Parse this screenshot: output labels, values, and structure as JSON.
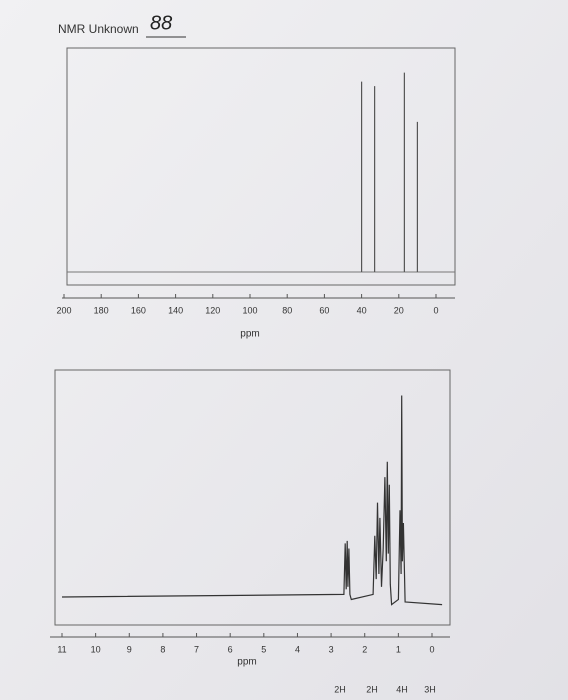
{
  "header": {
    "title": "NMR Unknown",
    "sample_number": "88"
  },
  "chart_data": [
    {
      "type": "stick",
      "x": [
        40,
        33,
        17,
        10
      ],
      "values": [
        85,
        83,
        89,
        67
      ],
      "xlim": [
        200,
        0
      ],
      "xticks": [
        200,
        180,
        160,
        140,
        120,
        100,
        80,
        60,
        40,
        20,
        0
      ],
      "ylim": [
        0,
        100
      ],
      "xlabel": "ppm",
      "color": "#555"
    },
    {
      "type": "line",
      "x": [
        11,
        2.62,
        2.58,
        2.55,
        2.52,
        2.5,
        2.47,
        2.44,
        2.4,
        1.75,
        1.7,
        1.66,
        1.62,
        1.58,
        1.55,
        1.5,
        1.45,
        1.4,
        1.36,
        1.33,
        1.3,
        1.27,
        1.24,
        1.2,
        1.0,
        0.95,
        0.92,
        0.9,
        0.88,
        0.85,
        0.8,
        -0.3
      ],
      "values": [
        11,
        12,
        32,
        14,
        33,
        15,
        30,
        12,
        10,
        12,
        35,
        18,
        48,
        20,
        42,
        15,
        30,
        58,
        25,
        64,
        28,
        55,
        16,
        8,
        10,
        45,
        20,
        90,
        25,
        40,
        9,
        8
      ],
      "xlim": [
        11,
        0
      ],
      "xticks": [
        11,
        10,
        9,
        8,
        7,
        6,
        5,
        4,
        3,
        2,
        1,
        0
      ],
      "ylim": [
        0,
        100
      ],
      "xlabel": "ppm",
      "color": "#333",
      "integrations": [
        "2H",
        "2H",
        "4H",
        "3H"
      ]
    }
  ]
}
